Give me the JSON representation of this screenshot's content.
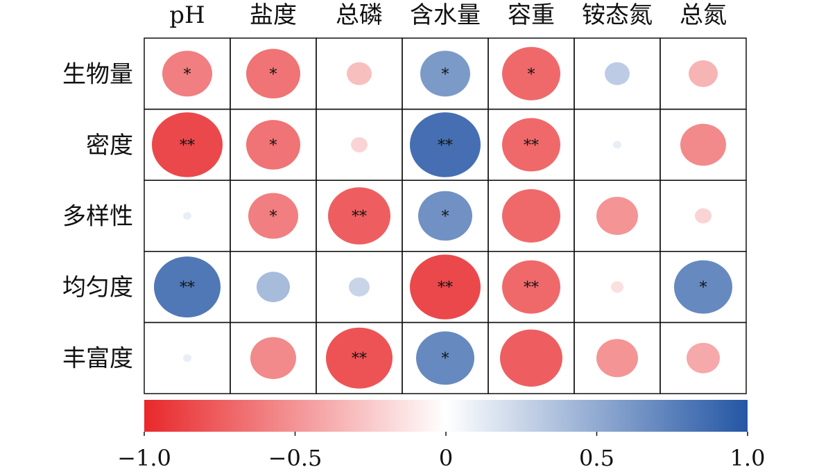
{
  "chart_data": {
    "type": "heatmap",
    "title": "",
    "columns": [
      "pH",
      "盐度",
      "总磷",
      "含水量",
      "容重",
      "铵态氮",
      "总氮"
    ],
    "rows": [
      "生物量",
      "密度",
      "多样性",
      "均匀度",
      "丰富度"
    ],
    "values": [
      [
        -0.6,
        -0.65,
        -0.3,
        0.6,
        -0.7,
        0.3,
        -0.35
      ],
      [
        -0.85,
        -0.65,
        -0.2,
        0.85,
        -0.7,
        0.1,
        -0.55
      ],
      [
        0.1,
        -0.6,
        -0.75,
        0.65,
        -0.7,
        -0.5,
        -0.2
      ],
      [
        0.8,
        0.4,
        0.25,
        -0.85,
        -0.7,
        -0.15,
        0.7
      ],
      [
        0.1,
        -0.55,
        -0.8,
        0.7,
        -0.75,
        -0.5,
        -0.4
      ]
    ],
    "significance": [
      [
        "*",
        "*",
        "",
        "*",
        "*",
        "",
        ""
      ],
      [
        "**",
        "*",
        "",
        "**",
        "**",
        "",
        ""
      ],
      [
        "",
        "*",
        "**",
        "*",
        "",
        "",
        ""
      ],
      [
        "**",
        "",
        "",
        "**",
        "**",
        "",
        "*"
      ],
      [
        "",
        "",
        "**",
        "*",
        "",
        "",
        ""
      ]
    ],
    "colorbar": {
      "range": [
        -1,
        1
      ],
      "ticks": [
        -1.0,
        -0.5,
        0,
        0.5,
        1.0
      ],
      "tick_labels": [
        "−1.0",
        "−0.5",
        "0",
        "0.5",
        "1.0"
      ],
      "low_color": "#e8282b",
      "mid_color": "#ffffff",
      "high_color": "#2456a4"
    }
  }
}
